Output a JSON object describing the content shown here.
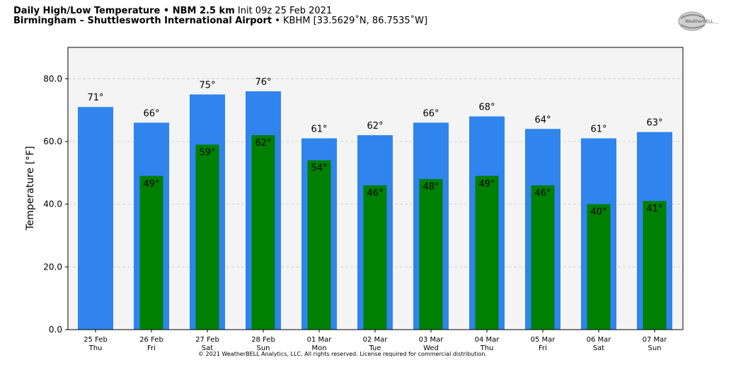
{
  "header": {
    "line1_bold": "Daily High/Low Temperature • NBM 2.5 km",
    "line1_rest": "Init 09z 25 Feb 2021",
    "line2_bold": "Birmingham – Shuttlesworth International Airport",
    "line2_rest": "• KBHM [33.5629˚N, 86.7535˚W]"
  },
  "logo": {
    "text": "WeatherBELL"
  },
  "footer": "© 2021 WeatherBELL Analytics, LLC. All rights reserved. License required for commercial distribution.",
  "colors": {
    "high": "#2f84ee",
    "low": "#008000",
    "plot_bg": "#f4f4f4",
    "grid": "#cccccc"
  },
  "chart_data": {
    "type": "bar",
    "ylabel": "Temperature [°F]",
    "ylim": [
      0,
      90
    ],
    "yticks": [
      0,
      20,
      40,
      60,
      80
    ],
    "ytick_labels": [
      "0.0",
      "20.0",
      "40.0",
      "60.0",
      "80.0"
    ],
    "grid": true,
    "categories": [
      {
        "date": "25 Feb",
        "day": "Thu"
      },
      {
        "date": "26 Feb",
        "day": "Fri"
      },
      {
        "date": "27 Feb",
        "day": "Sat"
      },
      {
        "date": "28 Feb",
        "day": "Sun"
      },
      {
        "date": "01 Mar",
        "day": "Mon"
      },
      {
        "date": "02 Mar",
        "day": "Tue"
      },
      {
        "date": "03 Mar",
        "day": "Wed"
      },
      {
        "date": "04 Mar",
        "day": "Thu"
      },
      {
        "date": "05 Mar",
        "day": "Fri"
      },
      {
        "date": "06 Mar",
        "day": "Sat"
      },
      {
        "date": "07 Mar",
        "day": "Sun"
      }
    ],
    "series": [
      {
        "values": [
          71,
          66,
          75,
          76,
          61,
          62,
          66,
          68,
          64,
          61,
          63
        ],
        "labels": [
          "71°",
          "66°",
          "75°",
          "76°",
          "61°",
          "62°",
          "66°",
          "68°",
          "64°",
          "61°",
          "63°"
        ]
      },
      {
        "values": [
          null,
          49,
          59,
          62,
          54,
          46,
          48,
          49,
          46,
          40,
          41
        ],
        "labels": [
          "",
          "49°",
          "59°",
          "62°",
          "54°",
          "46°",
          "48°",
          "49°",
          "46°",
          "40°",
          "41°"
        ]
      }
    ]
  }
}
